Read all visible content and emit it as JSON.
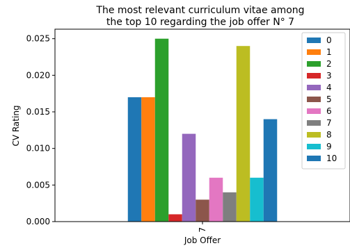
{
  "chart_data": {
    "type": "bar",
    "title": "The most relevant curriculum vitae among\nthe top 10 regarding the job offer N° 7",
    "xlabel": "Job Offer",
    "ylabel": "CV Rating",
    "categories": [
      "7"
    ],
    "ylim": [
      0,
      0.0263
    ],
    "yticks": [
      0.0,
      0.005,
      0.01,
      0.015,
      0.02,
      0.025
    ],
    "ytick_labels": [
      "0.000",
      "0.005",
      "0.010",
      "0.015",
      "0.020",
      "0.025"
    ],
    "grid": false,
    "legend_position": "top-right",
    "series": [
      {
        "name": "0",
        "values": [
          0.017
        ],
        "color": "#1f77b4"
      },
      {
        "name": "1",
        "values": [
          0.017
        ],
        "color": "#ff7f0e"
      },
      {
        "name": "2",
        "values": [
          0.025
        ],
        "color": "#2ca02c"
      },
      {
        "name": "3",
        "values": [
          0.001
        ],
        "color": "#d62728"
      },
      {
        "name": "4",
        "values": [
          0.012
        ],
        "color": "#9467bd"
      },
      {
        "name": "5",
        "values": [
          0.003
        ],
        "color": "#8c564b"
      },
      {
        "name": "6",
        "values": [
          0.006
        ],
        "color": "#e377c2"
      },
      {
        "name": "7",
        "values": [
          0.004
        ],
        "color": "#7f7f7f"
      },
      {
        "name": "8",
        "values": [
          0.024
        ],
        "color": "#bcbd22"
      },
      {
        "name": "9",
        "values": [
          0.006
        ],
        "color": "#17becf"
      },
      {
        "name": "10",
        "values": [
          0.014
        ],
        "color": "#1f77b4"
      }
    ]
  }
}
